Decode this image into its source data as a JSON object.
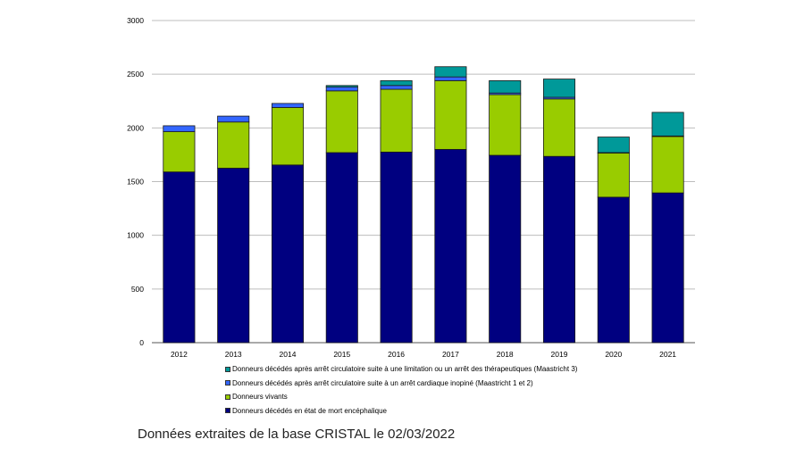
{
  "chart_data": {
    "type": "bar",
    "stacked": true,
    "categories": [
      "2012",
      "2013",
      "2014",
      "2015",
      "2016",
      "2017",
      "2018",
      "2019",
      "2020",
      "2021"
    ],
    "series": [
      {
        "name": "Donneurs décédés en état de mort encéphalique",
        "color": "#000080",
        "values": [
          1590,
          1625,
          1655,
          1770,
          1775,
          1800,
          1745,
          1735,
          1355,
          1395
        ]
      },
      {
        "name": "Donneurs vivants",
        "color": "#99cc00",
        "values": [
          375,
          430,
          535,
          575,
          585,
          640,
          565,
          535,
          410,
          525
        ]
      },
      {
        "name": "Donneurs décédés après arrêt circulatoire suite à un arrêt cardiaque inopiné (Maastricht 1 et 2)",
        "color": "#3366ff",
        "values": [
          55,
          55,
          38,
          35,
          35,
          35,
          15,
          15,
          5,
          5
        ]
      },
      {
        "name": "Donneurs décédés après arrêt circulatoire suite à une limitation ou un arrêt des thérapeutiques (Maastricht 3)",
        "color": "#009999",
        "values": [
          0,
          0,
          0,
          15,
          45,
          95,
          115,
          170,
          145,
          220
        ]
      }
    ],
    "legend_order": [
      3,
      2,
      1,
      0
    ],
    "ylim": [
      0,
      3000
    ],
    "yticks": [
      0,
      500,
      1000,
      1500,
      2000,
      2500,
      3000
    ],
    "grid": true,
    "legend_position": "bottom"
  },
  "caption": "Données extraites de la base CRISTAL le 02/03/2022"
}
